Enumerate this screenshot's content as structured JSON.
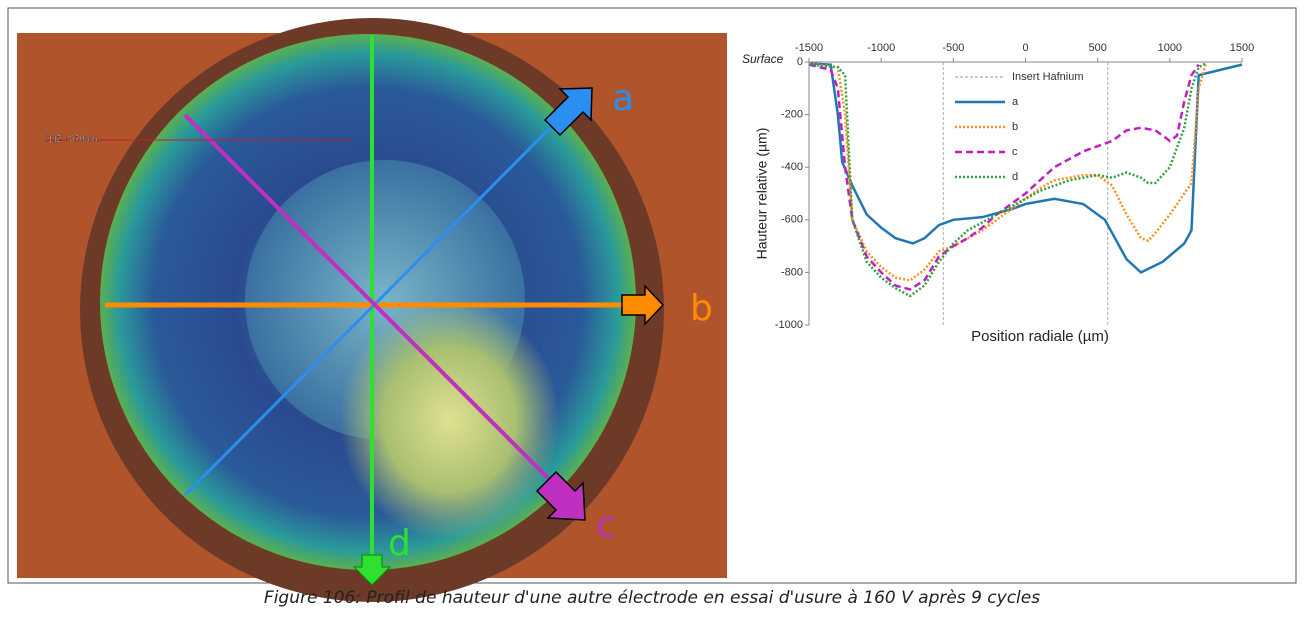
{
  "image": {
    "labels": {
      "a": "a",
      "b": "b",
      "c": "c",
      "d": "d"
    },
    "measurement": "[1]Z : 870µm"
  },
  "caption": "Figure 106: Profil de hauteur d'une autre électrode en essai d'usure à 160 V après 9 cycles",
  "chart_data": {
    "type": "line",
    "xlabel": "Position radiale (µm)",
    "ylabel": "Hauteur relative (µm)",
    "y_annotation": "Surface",
    "xlim": [
      -1500,
      1500
    ],
    "xticks": [
      -1500,
      -1000,
      -500,
      0,
      500,
      1000,
      1500
    ],
    "ylim": [
      -1000,
      0
    ],
    "yticks": [
      0,
      -200,
      -400,
      -600,
      -800,
      -1000
    ],
    "legend": "upper-center",
    "reference_lines": {
      "name": "Insert Hafnium",
      "x": [
        -570,
        570
      ],
      "color": "#999999",
      "dash": "dashed"
    },
    "series": [
      {
        "name": "a",
        "color": "#1f77b4",
        "dash": "solid",
        "x": [
          -1500,
          -1350,
          -1300,
          -1270,
          -1200,
          -1100,
          -1000,
          -900,
          -780,
          -700,
          -600,
          -500,
          -300,
          -100,
          0,
          200,
          400,
          550,
          700,
          800,
          950,
          1100,
          1150,
          1200,
          1350,
          1500
        ],
        "values": [
          -5,
          -10,
          -200,
          -380,
          -470,
          -580,
          -630,
          -670,
          -690,
          -670,
          -620,
          -600,
          -590,
          -560,
          -540,
          -520,
          -540,
          -600,
          -750,
          -800,
          -760,
          -690,
          -640,
          -50,
          -30,
          -10
        ]
      },
      {
        "name": "b",
        "color": "#ff9020",
        "dash": "dotted",
        "x": [
          -1500,
          -1300,
          -1250,
          -1200,
          -1100,
          -1000,
          -900,
          -800,
          -700,
          -600,
          -500,
          -400,
          -300,
          -200,
          -100,
          0,
          100,
          200,
          300,
          400,
          500,
          600,
          700,
          800,
          850,
          900,
          1000,
          1100,
          1150,
          1200,
          1250
        ],
        "values": [
          -5,
          -20,
          -200,
          -600,
          -720,
          -780,
          -820,
          -830,
          -790,
          -720,
          -700,
          -670,
          -640,
          -600,
          -560,
          -520,
          -480,
          -450,
          -440,
          -430,
          -430,
          -470,
          -580,
          -670,
          -680,
          -650,
          -580,
          -500,
          -460,
          -100,
          -5
        ]
      },
      {
        "name": "c",
        "color": "#c020c0",
        "dash": "dashed",
        "x": [
          -1500,
          -1350,
          -1300,
          -1250,
          -1200,
          -1100,
          -1000,
          -900,
          -800,
          -700,
          -600,
          -500,
          -400,
          -300,
          -200,
          -100,
          0,
          100,
          200,
          300,
          400,
          500,
          600,
          700,
          800,
          900,
          1000,
          1050,
          1100,
          1150,
          1200
        ],
        "values": [
          -10,
          -30,
          -100,
          -400,
          -600,
          -740,
          -800,
          -850,
          -865,
          -830,
          -740,
          -700,
          -670,
          -630,
          -580,
          -540,
          -500,
          -450,
          -400,
          -370,
          -340,
          -320,
          -300,
          -260,
          -250,
          -260,
          -300,
          -280,
          -150,
          -50,
          -10
        ]
      },
      {
        "name": "d",
        "color": "#30a040",
        "dash": "dotted",
        "x": [
          -1500,
          -1300,
          -1250,
          -1200,
          -1100,
          -1000,
          -900,
          -800,
          -700,
          -600,
          -500,
          -400,
          -300,
          -200,
          -100,
          0,
          100,
          200,
          300,
          400,
          500,
          600,
          700,
          800,
          850,
          900,
          1000,
          1100,
          1150,
          1200,
          1250
        ],
        "values": [
          -10,
          -20,
          -50,
          -600,
          -760,
          -820,
          -860,
          -890,
          -850,
          -760,
          -690,
          -640,
          -610,
          -580,
          -550,
          -520,
          -490,
          -470,
          -450,
          -440,
          -430,
          -440,
          -420,
          -440,
          -460,
          -460,
          -400,
          -250,
          -100,
          -20,
          -5
        ]
      }
    ]
  }
}
